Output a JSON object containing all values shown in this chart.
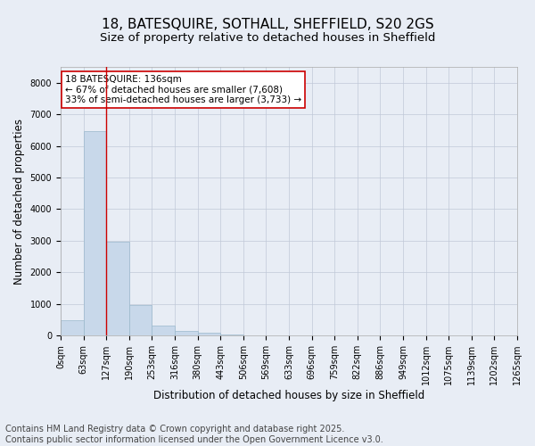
{
  "title_line1": "18, BATESQUIRE, SOTHALL, SHEFFIELD, S20 2GS",
  "title_line2": "Size of property relative to detached houses in Sheffield",
  "xlabel": "Distribution of detached houses by size in Sheffield",
  "ylabel": "Number of detached properties",
  "bar_color": "#c8d8ea",
  "bar_edge_color": "#9ab8cc",
  "grid_color": "#c0c8d8",
  "background_color": "#e8edf5",
  "vline_x": 2.0,
  "vline_color": "#cc0000",
  "annotation_text": "18 BATESQUIRE: 136sqm\n← 67% of detached houses are smaller (7,608)\n33% of semi-detached houses are larger (3,733) →",
  "annotation_box_facecolor": "#ffffff",
  "annotation_border_color": "#cc0000",
  "bins": [
    "0sqm",
    "63sqm",
    "127sqm",
    "190sqm",
    "253sqm",
    "316sqm",
    "380sqm",
    "443sqm",
    "506sqm",
    "569sqm",
    "633sqm",
    "696sqm",
    "759sqm",
    "822sqm",
    "886sqm",
    "949sqm",
    "1012sqm",
    "1075sqm",
    "1139sqm",
    "1202sqm",
    "1265sqm"
  ],
  "bar_heights": [
    500,
    6480,
    2960,
    960,
    330,
    155,
    95,
    40,
    0,
    0,
    0,
    0,
    0,
    0,
    0,
    0,
    0,
    0,
    0,
    0
  ],
  "ylim": [
    0,
    8500
  ],
  "yticks": [
    0,
    1000,
    2000,
    3000,
    4000,
    5000,
    6000,
    7000,
    8000
  ],
  "footer_line1": "Contains HM Land Registry data © Crown copyright and database right 2025.",
  "footer_line2": "Contains public sector information licensed under the Open Government Licence v3.0.",
  "footer_fontsize": 7,
  "title1_fontsize": 11,
  "title2_fontsize": 9.5,
  "axis_label_fontsize": 8.5,
  "tick_fontsize": 7,
  "annot_fontsize": 7.5
}
